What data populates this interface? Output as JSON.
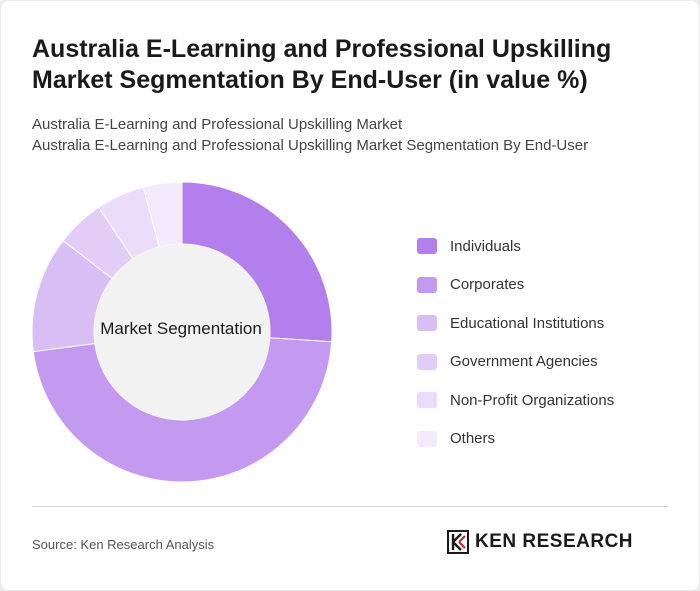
{
  "header": {
    "title": "Australia E-Learning and Professional Upskilling Market Segmentation By End-User (in value %)",
    "subtitle_line1": "Australia E-Learning and Professional Upskilling Market",
    "subtitle_line2": "Australia E-Learning and Professional Upskilling Market Segmentation By End-User"
  },
  "chart_data": {
    "type": "pie",
    "center_label": "Market Segmentation",
    "categories": [
      "Individuals",
      "Corporates",
      "Educational Institutions",
      "Government Agencies",
      "Non-Profit Organizations",
      "Others"
    ],
    "values": [
      25,
      45,
      12,
      5,
      5,
      4
    ],
    "colors": [
      "#b37fec",
      "#c39af0",
      "#d9bef6",
      "#e2cdf7",
      "#ebdcfa",
      "#f3ebfc"
    ],
    "legend_position": "right"
  },
  "footer": {
    "source": "Source: Ken Research Analysis",
    "logo_text": "KEN RESEARCH",
    "logo": "ken-research-logo"
  }
}
